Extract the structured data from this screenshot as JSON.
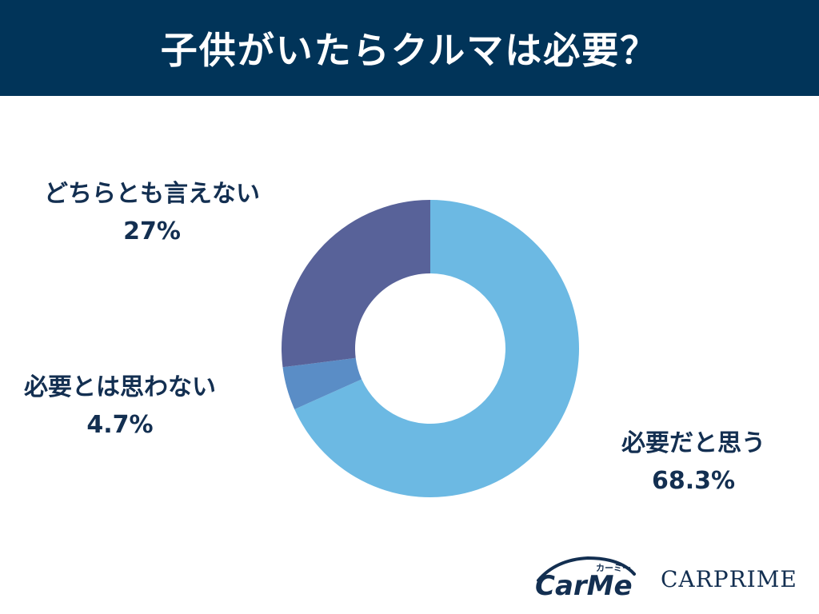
{
  "header": {
    "title": "子供がいたらクルマは必要？"
  },
  "chart_data": {
    "type": "pie",
    "donut": true,
    "title": "子供がいたらクルマは必要？",
    "slices": [
      {
        "label": "必要だと思う",
        "value": 68.3,
        "value_text": "68.3%",
        "color": "#6cb9e3"
      },
      {
        "label": "必要とは思わない",
        "value": 4.7,
        "value_text": "4.7%",
        "color": "#5a8dc6"
      },
      {
        "label": "どちらとも言えない",
        "value": 27,
        "value_text": "27%",
        "color": "#586299"
      }
    ]
  },
  "logos": {
    "carme_brand": "CarMe",
    "carme_kana": "カーミー",
    "carprime": "CARPRIME"
  }
}
